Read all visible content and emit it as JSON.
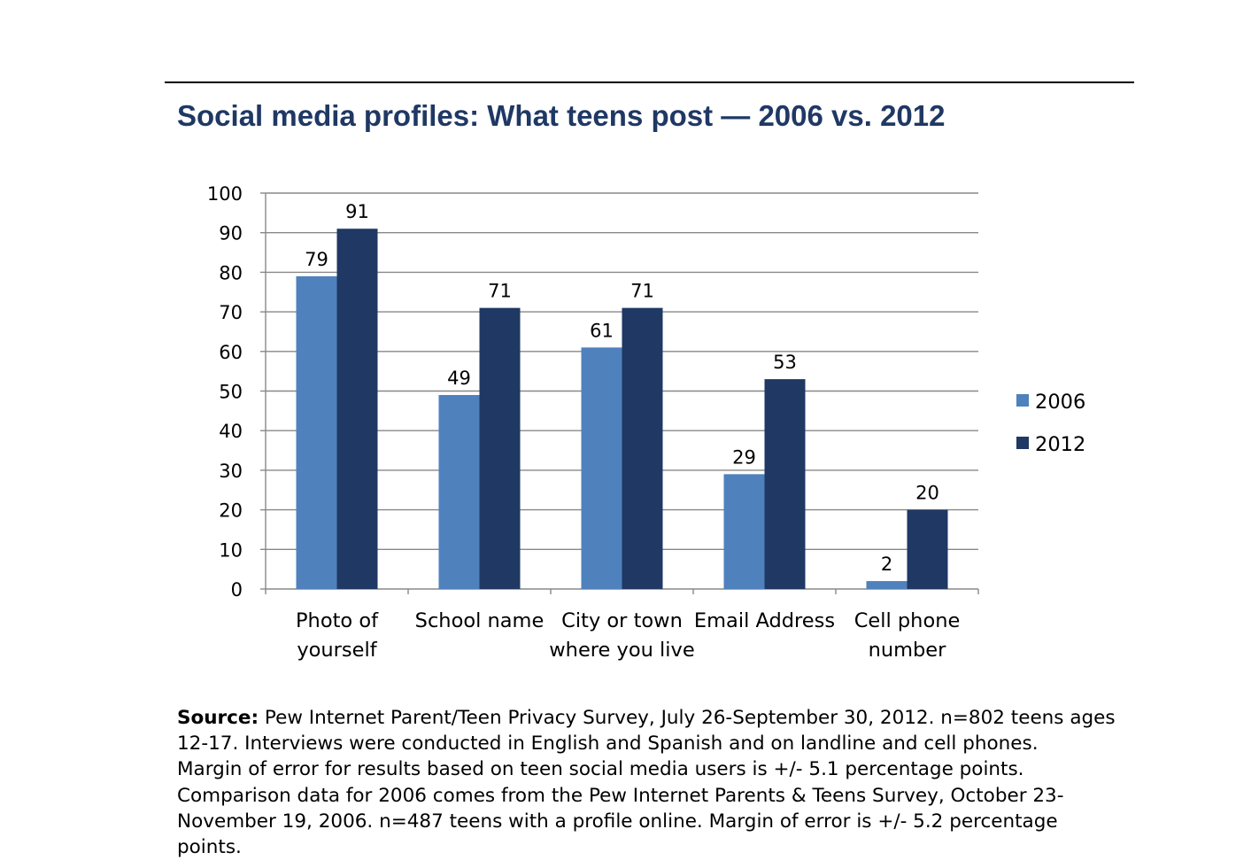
{
  "title": "Social media profiles: What teens post — 2006 vs. 2012",
  "source": {
    "label": "Source:",
    "lines": [
      " Pew Internet Parent/Teen Privacy Survey, July 26-September 30, 2012. n=802 teens ages",
      "12-17.  Interviews were conducted in English and Spanish and on landline and cell phones.",
      "Margin of error for results based on teen social media users is +/- 5.1 percentage points.",
      "Comparison data for 2006 comes from the Pew Internet Parents & Teens Survey, October 23-",
      "November 19, 2006.  n=487 teens with a profile online.  Margin of error is +/- 5.2 percentage",
      "points."
    ]
  },
  "chart_data": {
    "type": "bar",
    "title": "Social media profiles: What teens post — 2006 vs. 2012",
    "xlabel": "",
    "ylabel": "",
    "ylim": [
      0,
      100
    ],
    "yticks": [
      0,
      10,
      20,
      30,
      40,
      50,
      60,
      70,
      80,
      90,
      100
    ],
    "grid": true,
    "legend_position": "right",
    "categories": [
      [
        "Photo of",
        "yourself"
      ],
      [
        "School name"
      ],
      [
        "City or town",
        "where you live"
      ],
      [
        "Email Address"
      ],
      [
        "Cell phone",
        "number"
      ]
    ],
    "series": [
      {
        "name": "2006",
        "color": "#4f81bd",
        "values": [
          79,
          49,
          61,
          29,
          2
        ]
      },
      {
        "name": "2012",
        "color": "#1f3864",
        "values": [
          91,
          71,
          71,
          53,
          20
        ]
      }
    ]
  }
}
